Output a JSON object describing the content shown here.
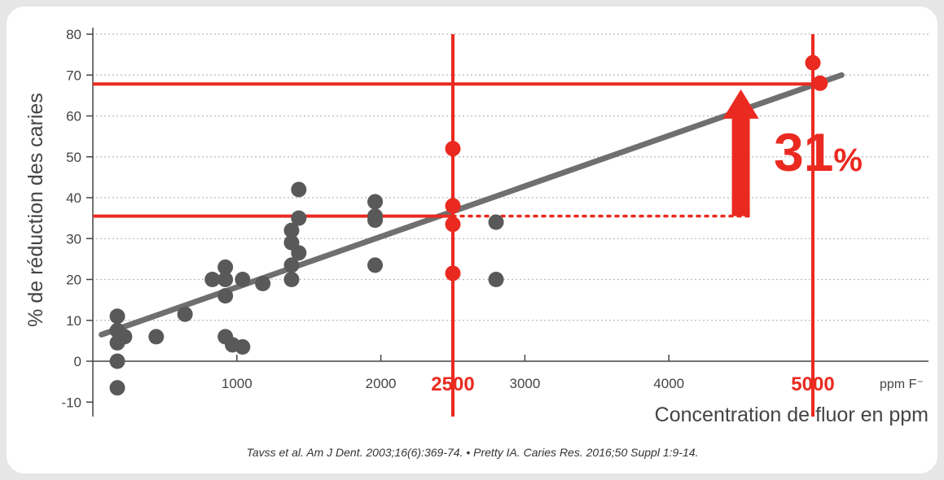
{
  "chart_data": {
    "type": "scatter",
    "ylabel": "% de réduction des caries",
    "xlabel": "Concentration de fluor en ppm",
    "x_unit": "ppm F⁻",
    "xlim": [
      -100,
      5800
    ],
    "ylim": [
      -12,
      82
    ],
    "x_ticks": [
      1000,
      2000,
      3000,
      4000
    ],
    "y_ticks": [
      80,
      70,
      60,
      50,
      40,
      30,
      20,
      10,
      0,
      -10
    ],
    "grid": true,
    "points_dark": [
      [
        170,
        11
      ],
      [
        170,
        7.5
      ],
      [
        170,
        4.5
      ],
      [
        170,
        0
      ],
      [
        170,
        -6.5
      ],
      [
        220,
        6
      ],
      [
        440,
        6
      ],
      [
        640,
        11.5
      ],
      [
        830,
        20
      ],
      [
        920,
        23
      ],
      [
        920,
        20
      ],
      [
        920,
        16
      ],
      [
        920,
        6
      ],
      [
        970,
        4
      ],
      [
        1040,
        3.5
      ],
      [
        1040,
        20
      ],
      [
        1180,
        19
      ],
      [
        1380,
        20
      ],
      [
        1380,
        23.5
      ],
      [
        1380,
        29
      ],
      [
        1380,
        32
      ],
      [
        1430,
        42
      ],
      [
        1430,
        35
      ],
      [
        1430,
        26.5
      ],
      [
        1960,
        39
      ],
      [
        1960,
        35.5
      ],
      [
        1960,
        34.5
      ],
      [
        1960,
        23.5
      ],
      [
        2800,
        34
      ],
      [
        2800,
        20
      ]
    ],
    "points_red": [
      [
        2500,
        52
      ],
      [
        2500,
        38
      ],
      [
        2500,
        33.5
      ],
      [
        2500,
        21.5
      ],
      [
        5000,
        73
      ],
      [
        5050,
        68
      ]
    ],
    "trendline": [
      [
        60,
        6.5
      ],
      [
        5200,
        70
      ]
    ],
    "reference_lines": {
      "vertical_x": [
        2500,
        5000
      ],
      "horizontal_y": [
        35.5,
        67.8
      ]
    },
    "highlight_x": [
      {
        "x": 2500,
        "label": "2500"
      },
      {
        "x": 5000,
        "label": "5000"
      }
    ],
    "arrow": {
      "x": 4500,
      "from_y": 35.5,
      "to_y": 66.5
    },
    "callout": {
      "value": "31",
      "suffix": "%"
    },
    "colors": {
      "dark": "#595959",
      "red": "#ea2a20",
      "grid": "#bbbbbb",
      "trend": "#6f6f6f"
    }
  },
  "citation": "Tavss et al. Am J Dent. 2003;16(6):369-74. • Pretty IA. Caries Res. 2016;50 Suppl 1:9-14."
}
